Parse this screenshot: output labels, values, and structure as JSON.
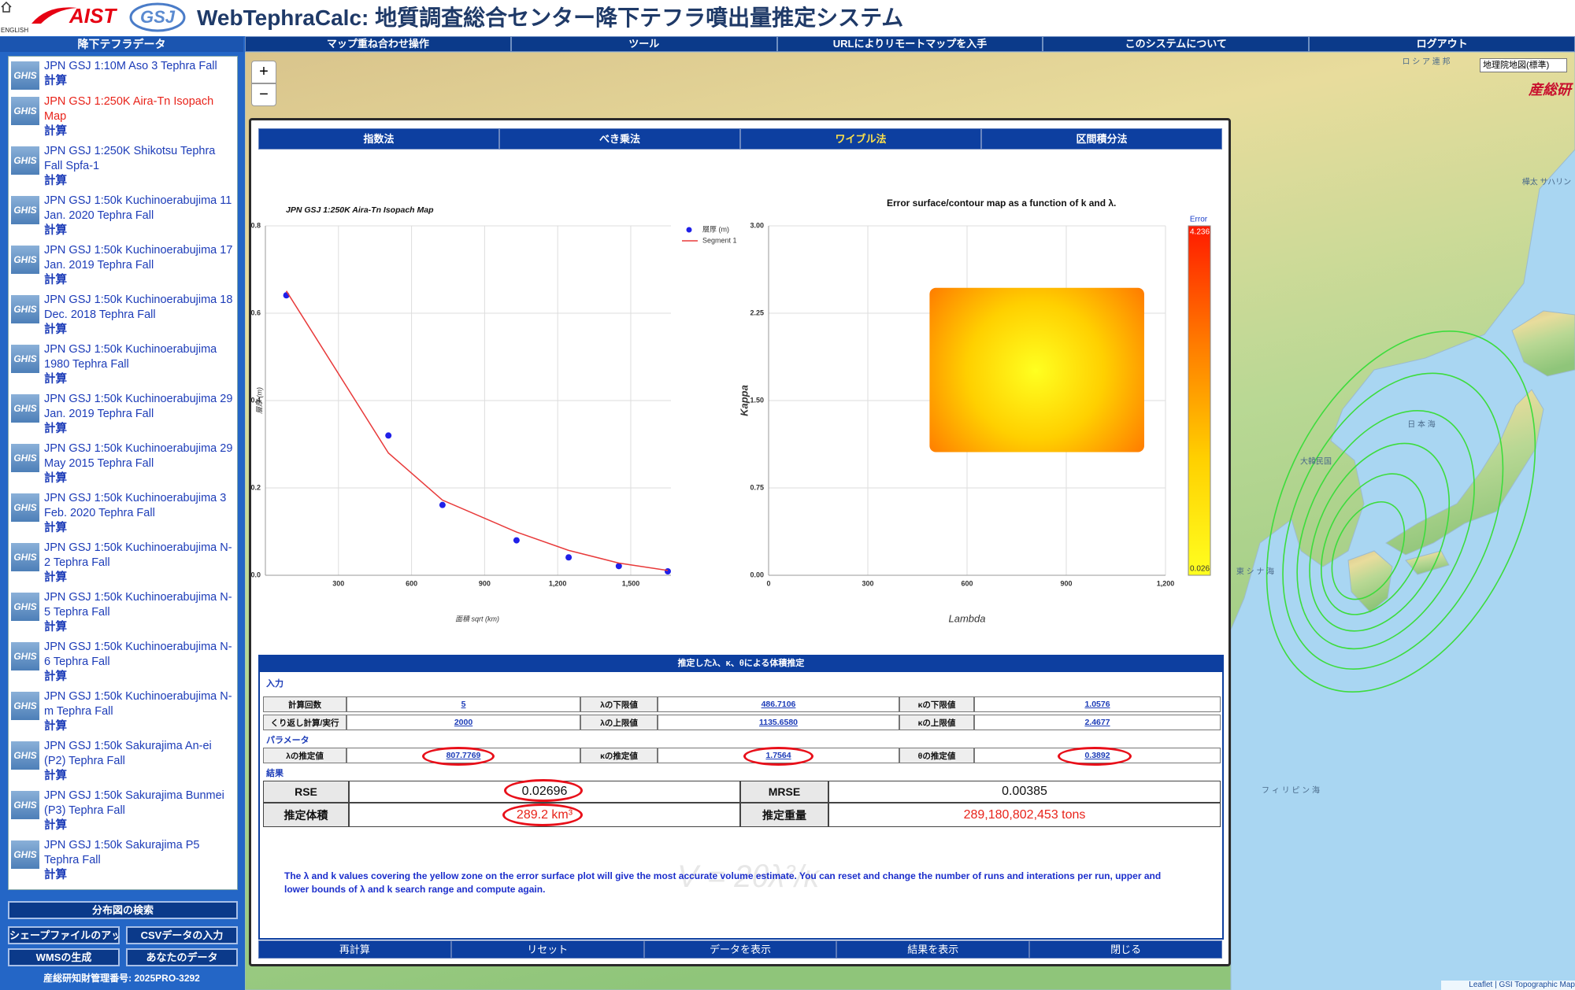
{
  "header": {
    "english": "ENGLISH",
    "logo": "AIST",
    "logo2": "GSJ",
    "title": "WebTephraCalc: 地質調査総合センター降下テフラ噴出量推定システム"
  },
  "menu": [
    "マップ重ね合わせ操作",
    "ツール",
    "URLによりリモートマップを入手",
    "このシステムについて",
    "ログアウト"
  ],
  "sidebar": {
    "title": "降下テフラデータ",
    "icon_label": "GHIS",
    "action": "計算",
    "selected": 1,
    "items": [
      "JPN GSJ 1:10M Aso 3 Tephra Fall",
      "JPN GSJ 1:250K Aira-Tn Isopach Map",
      "JPN GSJ 1:250K Shikotsu Tephra Fall Spfa-1",
      "JPN GSJ 1:50k Kuchinoerabujima 11 Jan. 2020 Tephra Fall",
      "JPN GSJ 1:50k Kuchinoerabujima 17 Jan. 2019 Tephra Fall",
      "JPN GSJ 1:50k Kuchinoerabujima 18 Dec. 2018 Tephra Fall",
      "JPN GSJ 1:50k Kuchinoerabujima 1980 Tephra Fall",
      "JPN GSJ 1:50k Kuchinoerabujima 29 Jan. 2019 Tephra Fall",
      "JPN GSJ 1:50k Kuchinoerabujima 29 May 2015 Tephra Fall",
      "JPN GSJ 1:50k Kuchinoerabujima 3 Feb. 2020 Tephra Fall",
      "JPN GSJ 1:50k Kuchinoerabujima N-2 Tephra Fall",
      "JPN GSJ 1:50k Kuchinoerabujima N-5 Tephra Fall",
      "JPN GSJ 1:50k Kuchinoerabujima N-6 Tephra Fall",
      "JPN GSJ 1:50k Kuchinoerabujima N-m Tephra Fall",
      "JPN GSJ 1:50k Sakurajima An-ei (P2) Tephra Fall",
      "JPN GSJ 1:50k Sakurajima Bunmei (P3) Tephra Fall",
      "JPN GSJ 1:50k Sakurajima P5 Tephra Fall"
    ],
    "search": "分布図の検索",
    "buttons": [
      "シェープファイルのアップ",
      "CSVデータの入力",
      "WMSの生成",
      "あなたのデータ"
    ],
    "footer": "産総研知財管理番号: 2025PRO-3292"
  },
  "map": {
    "zoom_in": "+",
    "zoom_out": "−",
    "layer": "地理院地図(標準)",
    "brand": "産総研",
    "labels": [
      "ロ シ ア 連 邦",
      "樺太 サハリン",
      "大韓民国",
      "日 本 海",
      "東 シ ナ 海",
      "フ ィ リ ピ ン 海"
    ],
    "attribution": "Leaflet | GSI Topographic Map"
  },
  "dialog": {
    "tabs": [
      "指数法",
      "べき乗法",
      "ワイブル法",
      "区間積分法"
    ],
    "active_tab": 2,
    "panel": {
      "title": "推定したλ、κ、θによる体積推定",
      "input_label": "入力",
      "input_rows": [
        [
          "計算回数",
          "5",
          "λの下限値",
          "486.7106",
          "κの下限値",
          "1.0576"
        ],
        [
          "くり返し計算/実行",
          "2000",
          "λの上限値",
          "1135.6580",
          "κの上限値",
          "2.4677"
        ]
      ],
      "param_label": "パラメータ",
      "param_row": [
        "λの推定値",
        "807.7769",
        "κの推定値",
        "1.7564",
        "θの推定値",
        "0.3892"
      ],
      "result_label": "結果",
      "result_rows": [
        [
          "RSE",
          "0.02696",
          "MRSE",
          "0.00385"
        ],
        [
          "推定体積",
          "289.2 km³",
          "推定重量",
          "289,180,802,453 tons"
        ]
      ],
      "note": "The λ and k values covering the yellow zone on the error surface plot will give the most accurate volume estimate. You can reset and change the number of runs and interations per run, upper and lower bounds of λ and k search range and compute again.",
      "watermark": "V = 2θλ²/κ"
    },
    "buttons": [
      "再計算",
      "リセット",
      "データを表示",
      "結果を表示",
      "閉じる"
    ]
  },
  "chart_data": [
    {
      "type": "line",
      "title": "JPN GSJ 1:250K Aira-Tn Isopach Map",
      "x_label": "面積 sqrt (km)",
      "y_label": "層厚 (m)",
      "xlim": [
        0,
        1665
      ],
      "ylim": [
        0,
        0.8
      ],
      "xticks": [
        300,
        600,
        900,
        {
          "value": 1200,
          "label": "1,200"
        },
        {
          "value": 1500,
          "label": "1,500"
        }
      ],
      "yticks": [
        {
          "value": 0,
          "label": "0.0"
        },
        0.2,
        0.4,
        0.6,
        0.8
      ],
      "grid": true,
      "legend": "upper right",
      "series": [
        {
          "name": "層厚 (m)",
          "type": "scatter",
          "color": "#2020e8",
          "x": [
            86,
            505,
            727,
            1031,
            1245,
            1451,
            1652
          ],
          "values": [
            0.641,
            0.32,
            0.161,
            0.08,
            0.041,
            0.021,
            0.009
          ]
        },
        {
          "name": "Segment 1",
          "type": "line",
          "color": "#e83a3a",
          "x": [
            86,
            505,
            727,
            1031,
            1245,
            1451,
            1652
          ],
          "values": [
            0.651,
            0.28,
            0.172,
            0.099,
            0.057,
            0.028,
            0.011
          ]
        }
      ]
    },
    {
      "type": "surface",
      "title": "Error surface/contour map as a function of k and λ.",
      "x_label": "Lambda",
      "y_label": "Kappa",
      "xlim": [
        0,
        1200
      ],
      "ylim": [
        0,
        3
      ],
      "xticks": [
        0,
        300,
        600,
        900,
        {
          "value": 1200,
          "label": "1,200"
        }
      ],
      "yticks": [
        {
          "value": 0,
          "label": "0.00"
        },
        0.75,
        {
          "value": 1.5,
          "label": "1.50"
        },
        2.25,
        {
          "value": 3,
          "label": "3.00"
        }
      ],
      "grid": true,
      "colorbar": {
        "title": "Error",
        "max_label": "4.236",
        "min_label": "0.026",
        "colors": [
          "#ff1a00",
          "#ff7a00",
          "#ffd000",
          "#ffff20"
        ]
      }
    }
  ]
}
